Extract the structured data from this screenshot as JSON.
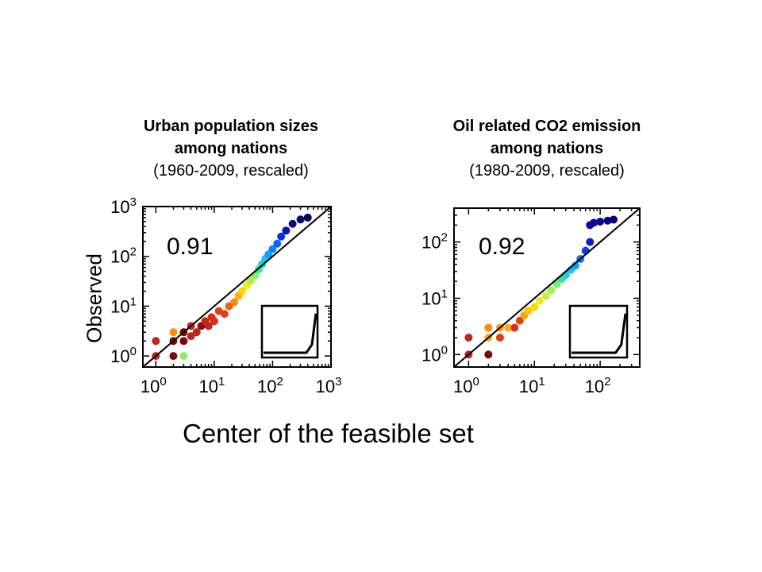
{
  "xlabel": "Center of the feasible set",
  "ylabel": "Observed",
  "charts": [
    {
      "title_line1": "Urban population sizes",
      "title_line2": "among nations",
      "title_line3": "(1960-2009, rescaled)",
      "r_value": "0.91",
      "xticks": [
        {
          "exp": 0,
          "label": "10",
          "sup": "0"
        },
        {
          "exp": 1,
          "label": "10",
          "sup": "1"
        },
        {
          "exp": 2,
          "label": "10",
          "sup": "2"
        },
        {
          "exp": 3,
          "label": "10",
          "sup": "3"
        }
      ],
      "yticks": [
        {
          "exp": 0,
          "label": "10",
          "sup": "0"
        },
        {
          "exp": 1,
          "label": "10",
          "sup": "1"
        },
        {
          "exp": 2,
          "label": "10",
          "sup": "2"
        },
        {
          "exp": 3,
          "label": "10",
          "sup": "3"
        }
      ]
    },
    {
      "title_line1": "Oil related CO2 emission",
      "title_line2": "among nations",
      "title_line3": "(1980-2009, rescaled)",
      "r_value": "0.92",
      "xticks": [
        {
          "exp": 0,
          "label": "10",
          "sup": "0"
        },
        {
          "exp": 1,
          "label": "10",
          "sup": "1"
        },
        {
          "exp": 2,
          "label": "10",
          "sup": "2"
        }
      ],
      "yticks": [
        {
          "exp": 0,
          "label": "10",
          "sup": "0"
        },
        {
          "exp": 1,
          "label": "10",
          "sup": "1"
        },
        {
          "exp": 2,
          "label": "10",
          "sup": "2"
        }
      ]
    }
  ],
  "chart_data": [
    {
      "type": "scatter",
      "title": "Urban population sizes among nations (1960-2009, rescaled)",
      "xlabel": "Center of the feasible set",
      "ylabel": "Observed",
      "xscale": "log",
      "yscale": "log",
      "xlim": [
        0.6,
        1000
      ],
      "ylim": [
        0.6,
        1000
      ],
      "reference_line": "y = x",
      "annotation": "0.91",
      "inset": "rank-abundance curve",
      "color_scale": "jet (dark red = smallest, dark blue = largest)",
      "points": [
        {
          "x": 1,
          "y": 2,
          "c": "#c0241e"
        },
        {
          "x": 1,
          "y": 1,
          "c": "#c0241e"
        },
        {
          "x": 2,
          "y": 3,
          "c": "#ff8c10"
        },
        {
          "x": 2,
          "y": 2,
          "c": "#7a0a0a"
        },
        {
          "x": 2,
          "y": 1,
          "c": "#7a0a0a"
        },
        {
          "x": 3,
          "y": 3,
          "c": "#7a0a0a"
        },
        {
          "x": 3,
          "y": 2,
          "c": "#7a0a0a"
        },
        {
          "x": 3,
          "y": 1,
          "c": "#8bea6a"
        },
        {
          "x": 4,
          "y": 2.5,
          "c": "#c0241e"
        },
        {
          "x": 4,
          "y": 4,
          "c": "#c0241e"
        },
        {
          "x": 5,
          "y": 3,
          "c": "#c0241e"
        },
        {
          "x": 6,
          "y": 4,
          "c": "#8a0f0f"
        },
        {
          "x": 7,
          "y": 5,
          "c": "#c0241e"
        },
        {
          "x": 8,
          "y": 4,
          "c": "#c0241e"
        },
        {
          "x": 9,
          "y": 6,
          "c": "#d83018"
        },
        {
          "x": 10,
          "y": 5,
          "c": "#d83018"
        },
        {
          "x": 12,
          "y": 8,
          "c": "#e04018"
        },
        {
          "x": 15,
          "y": 7,
          "c": "#e04018"
        },
        {
          "x": 18,
          "y": 10,
          "c": "#ee6010"
        },
        {
          "x": 22,
          "y": 12,
          "c": "#ff8c10"
        },
        {
          "x": 26,
          "y": 16,
          "c": "#ffb010"
        },
        {
          "x": 30,
          "y": 20,
          "c": "#ffd800"
        },
        {
          "x": 36,
          "y": 26,
          "c": "#e8f020"
        },
        {
          "x": 42,
          "y": 32,
          "c": "#b0f040"
        },
        {
          "x": 50,
          "y": 42,
          "c": "#80f070"
        },
        {
          "x": 58,
          "y": 55,
          "c": "#40e0a0"
        },
        {
          "x": 66,
          "y": 70,
          "c": "#20d0d0"
        },
        {
          "x": 75,
          "y": 90,
          "c": "#20c0f0"
        },
        {
          "x": 85,
          "y": 110,
          "c": "#10a0ff"
        },
        {
          "x": 100,
          "y": 140,
          "c": "#1080ff"
        },
        {
          "x": 120,
          "y": 180,
          "c": "#1060ff"
        },
        {
          "x": 140,
          "y": 250,
          "c": "#0a30e0"
        },
        {
          "x": 170,
          "y": 330,
          "c": "#0a10c0"
        },
        {
          "x": 220,
          "y": 450,
          "c": "#080a90"
        },
        {
          "x": 300,
          "y": 550,
          "c": "#06066a"
        },
        {
          "x": 400,
          "y": 600,
          "c": "#040650"
        }
      ]
    },
    {
      "type": "scatter",
      "title": "Oil related CO2 emission among nations (1980-2009, rescaled)",
      "xlabel": "Center of the feasible set",
      "ylabel": "Observed",
      "xscale": "log",
      "yscale": "log",
      "xlim": [
        0.6,
        400
      ],
      "ylim": [
        0.6,
        400
      ],
      "reference_line": "y = x",
      "annotation": "0.92",
      "inset": "rank-abundance curve",
      "color_scale": "jet (dark red = smallest, dark blue = largest)",
      "points": [
        {
          "x": 1,
          "y": 2,
          "c": "#c0241e"
        },
        {
          "x": 1,
          "y": 1,
          "c": "#c0241e"
        },
        {
          "x": 2,
          "y": 3,
          "c": "#ff8c10"
        },
        {
          "x": 2,
          "y": 2,
          "c": "#ffb010"
        },
        {
          "x": 2,
          "y": 1,
          "c": "#7a0a0a"
        },
        {
          "x": 3,
          "y": 3,
          "c": "#ff9c10"
        },
        {
          "x": 3,
          "y": 2,
          "c": "#e04018"
        },
        {
          "x": 4,
          "y": 3,
          "c": "#ffb010"
        },
        {
          "x": 5,
          "y": 3,
          "c": "#d83018"
        },
        {
          "x": 6,
          "y": 4,
          "c": "#e04018"
        },
        {
          "x": 7,
          "y": 5,
          "c": "#ffa010"
        },
        {
          "x": 8,
          "y": 6,
          "c": "#ffc010"
        },
        {
          "x": 10,
          "y": 7,
          "c": "#ffd800"
        },
        {
          "x": 12,
          "y": 9,
          "c": "#f0e830"
        },
        {
          "x": 15,
          "y": 11,
          "c": "#c8f040"
        },
        {
          "x": 18,
          "y": 14,
          "c": "#a0f050"
        },
        {
          "x": 22,
          "y": 18,
          "c": "#70f080"
        },
        {
          "x": 26,
          "y": 22,
          "c": "#40e0a0"
        },
        {
          "x": 30,
          "y": 26,
          "c": "#20d0d0"
        },
        {
          "x": 36,
          "y": 32,
          "c": "#20c0f0"
        },
        {
          "x": 42,
          "y": 38,
          "c": "#10a0ff"
        },
        {
          "x": 50,
          "y": 50,
          "c": "#1070ff"
        },
        {
          "x": 60,
          "y": 70,
          "c": "#0a40f0"
        },
        {
          "x": 70,
          "y": 100,
          "c": "#0a20d0"
        },
        {
          "x": 70,
          "y": 200,
          "c": "#0808b0"
        },
        {
          "x": 80,
          "y": 220,
          "c": "#0808a0"
        },
        {
          "x": 100,
          "y": 230,
          "c": "#060690"
        },
        {
          "x": 130,
          "y": 240,
          "c": "#060680"
        },
        {
          "x": 160,
          "y": 250,
          "c": "#050570"
        }
      ]
    }
  ]
}
